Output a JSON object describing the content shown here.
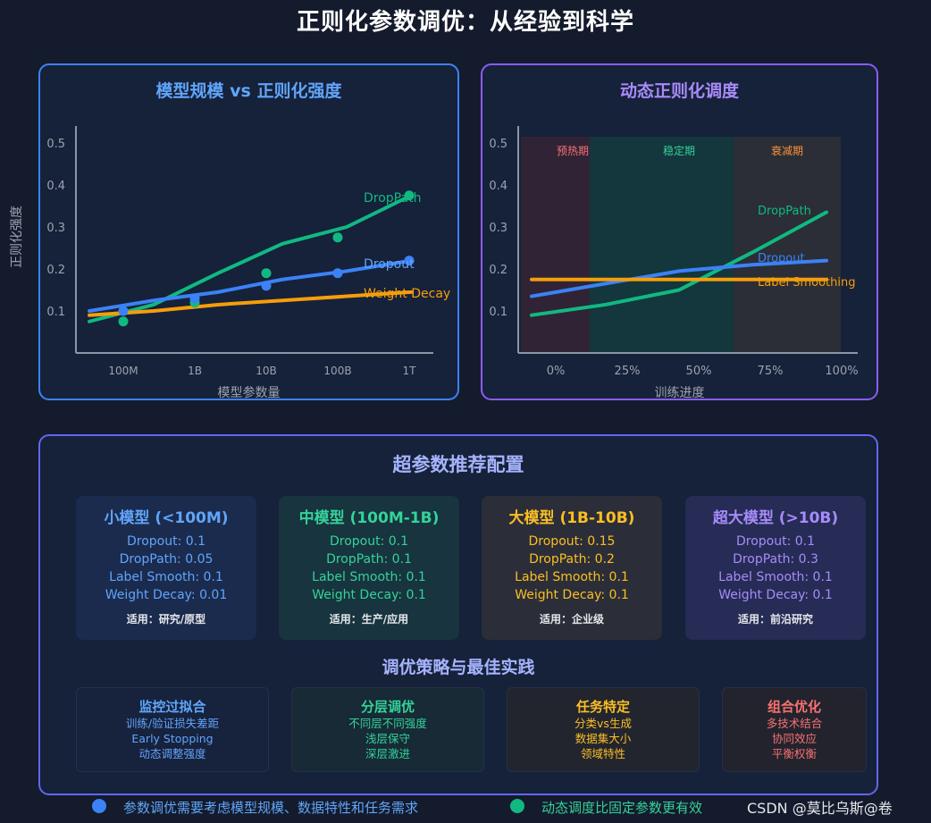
{
  "title": "正则化参数调优：从经验到科学",
  "y_axis_label": "正则化强度",
  "left_chart": {
    "title": "模型规模 vs 正则化强度",
    "xlabel": "模型参数量",
    "y_ticks": [
      "0.5",
      "0.4",
      "0.3",
      "0.2",
      "0.1"
    ],
    "x_ticks": [
      "100M",
      "1B",
      "10B",
      "100B",
      "1T"
    ],
    "labels": {
      "droppath": "DropPath",
      "dropout": "Dropout",
      "weight_decay": "Weight Decay"
    }
  },
  "right_chart": {
    "title": "动态正则化调度",
    "xlabel": "训练进度",
    "y_ticks": [
      "0.5",
      "0.4",
      "0.3",
      "0.2",
      "0.1"
    ],
    "x_ticks": [
      "0%",
      "25%",
      "50%",
      "75%",
      "100%"
    ],
    "phases": [
      "预热期",
      "稳定期",
      "衰减期"
    ],
    "labels": {
      "droppath": "DropPath",
      "dropout": "Dropout",
      "label_smoothing": "Label Smoothing"
    }
  },
  "chart_data": [
    {
      "type": "line",
      "title": "模型规模 vs 正则化强度",
      "xlabel": "模型参数量",
      "ylabel": "正则化强度",
      "categories": [
        "100M",
        "1B",
        "10B",
        "100B",
        "1T"
      ],
      "ylim": [
        0,
        0.6
      ],
      "series": [
        {
          "name": "DropPath",
          "color": "#10b981",
          "line": [
            0.075,
            0.115,
            0.19,
            0.26,
            0.3,
            0.375
          ],
          "points": [
            0.075,
            0.12,
            0.19,
            0.275,
            0.375
          ]
        },
        {
          "name": "Dropout",
          "color": "#3b82f6",
          "line": [
            0.1,
            0.125,
            0.145,
            0.175,
            0.195,
            0.22
          ],
          "points": [
            0.1,
            0.13,
            0.16,
            0.19,
            0.22
          ]
        },
        {
          "name": "Weight Decay",
          "color": "#f59e0b",
          "line": [
            0.09,
            0.1,
            0.115,
            0.125,
            0.135,
            0.145
          ]
        }
      ]
    },
    {
      "type": "line",
      "title": "动态正则化调度",
      "xlabel": "训练进度",
      "ylabel": "正则化强度",
      "categories": [
        "0%",
        "25%",
        "50%",
        "75%",
        "100%"
      ],
      "ylim": [
        0,
        0.6
      ],
      "phases": [
        {
          "name": "预热期",
          "from": 0,
          "to": 10
        },
        {
          "name": "稳定期",
          "from": 10,
          "to": 60
        },
        {
          "name": "衰减期",
          "from": 60,
          "to": 100
        }
      ],
      "series": [
        {
          "name": "DropPath",
          "color": "#10b981",
          "x": [
            0,
            25,
            50,
            75,
            100
          ],
          "values": [
            0.09,
            0.115,
            0.15,
            0.24,
            0.335
          ]
        },
        {
          "name": "Dropout",
          "color": "#3b82f6",
          "x": [
            0,
            25,
            50,
            75,
            100
          ],
          "values": [
            0.135,
            0.165,
            0.195,
            0.21,
            0.22
          ]
        },
        {
          "name": "Label Smoothing",
          "color": "#f59e0b",
          "x": [
            0,
            25,
            50,
            75,
            100
          ],
          "values": [
            0.175,
            0.175,
            0.175,
            0.175,
            0.175
          ]
        }
      ]
    }
  ],
  "recommend": {
    "title": "超参数推荐配置",
    "cards": [
      {
        "title": "小模型 (<100M)",
        "lines": [
          "Dropout: 0.1",
          "DropPath: 0.05",
          "Label Smooth: 0.1",
          "Weight Decay: 0.01"
        ],
        "use": "适用：研究/原型",
        "color": "#60a5fa",
        "bg": "#1b2b4e"
      },
      {
        "title": "中模型 (100M-1B)",
        "lines": [
          "Dropout: 0.1",
          "DropPath: 0.1",
          "Label Smooth: 0.1",
          "Weight Decay: 0.1"
        ],
        "use": "适用：生产/应用",
        "color": "#34d399",
        "bg": "#17343f"
      },
      {
        "title": "大模型 (1B-10B)",
        "lines": [
          "Dropout: 0.15",
          "DropPath: 0.2",
          "Label Smooth: 0.1",
          "Weight Decay: 0.1"
        ],
        "use": "适用：企业级",
        "color": "#fbbf24",
        "bg": "#2b2e38"
      },
      {
        "title": "超大模型 (>10B)",
        "lines": [
          "Dropout: 0.1",
          "DropPath: 0.3",
          "Label Smooth: 0.1",
          "Weight Decay: 0.1"
        ],
        "use": "适用：前沿研究",
        "color": "#a78bfa",
        "bg": "#262c55"
      }
    ]
  },
  "strategies": {
    "title": "调优策略与最佳实践",
    "items": [
      {
        "title": "监控过拟合",
        "lines": [
          "训练/验证损失差距",
          "Early Stopping",
          "动态调整强度"
        ],
        "color": "#60a5fa",
        "bg": "#17223d"
      },
      {
        "title": "分层调优",
        "lines": [
          "不同层不同强度",
          "浅层保守",
          "深层激进"
        ],
        "color": "#34d399",
        "bg": "#172a36"
      },
      {
        "title": "任务特定",
        "lines": [
          "分类vs生成",
          "数据集大小",
          "领域特性"
        ],
        "color": "#fbbf24",
        "bg": "#23252e"
      },
      {
        "title": "组合优化",
        "lines": [
          "多技术结合",
          "协同效应",
          "平衡权衡"
        ],
        "color": "#f87171",
        "bg": "#22232d"
      }
    ]
  },
  "footer": {
    "items": [
      {
        "text": "参数调优需要考虑模型规模、数据特性和任务需求",
        "color": "#3b82f6",
        "text_color": "#60a5fa"
      },
      {
        "text": "动态调度比固定参数更有效",
        "color": "#10b981",
        "text_color": "#34d399"
      }
    ],
    "watermark": "CSDN @莫比乌斯@卷"
  }
}
